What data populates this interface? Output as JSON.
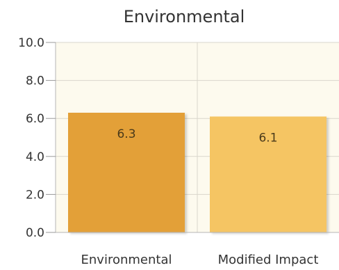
{
  "chart_data": {
    "type": "bar",
    "title": "Environmental",
    "categories": [
      "Environmental",
      "Modified Impact"
    ],
    "values": [
      6.3,
      6.1
    ],
    "data_labels": [
      "6.3",
      "6.1"
    ],
    "colors": [
      "#e3a038",
      "#f5c563"
    ],
    "ylim": [
      0,
      10
    ],
    "yticks": [
      {
        "value": 0,
        "label": "0.0"
      },
      {
        "value": 2,
        "label": "2.0"
      },
      {
        "value": 4,
        "label": "4.0"
      },
      {
        "value": 6,
        "label": "6.0"
      },
      {
        "value": 8,
        "label": "8.0"
      },
      {
        "value": 10,
        "label": "10.0"
      }
    ],
    "grid": true,
    "plot_background": "#fdfaee"
  }
}
